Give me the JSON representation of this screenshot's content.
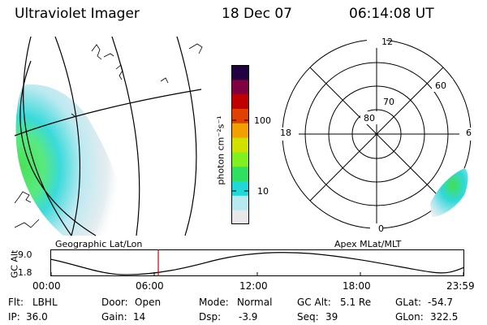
{
  "header": {
    "instrument": "Ultraviolet Imager",
    "date": "18 Dec 07",
    "time": "06:14:08 UT"
  },
  "geographic_panel": {
    "label": "Geographic Lat/Lon"
  },
  "colorbar": {
    "unit_label": "photon cm⁻²s⁻¹",
    "tick_labels": [
      "100",
      "10"
    ],
    "scale": "log",
    "colors": [
      "#e8e8e8",
      "#b8e8f0",
      "#20d8d8",
      "#30e060",
      "#80f020",
      "#d0e000",
      "#f0a000",
      "#e04000",
      "#c00000",
      "#800040",
      "#200040"
    ]
  },
  "polar_panel": {
    "label": "Apex MLat/MLT",
    "mlt_labels": {
      "top": "12",
      "left": "18",
      "right": "6",
      "bottom": "0"
    },
    "lat_labels": [
      "80",
      "70",
      "60"
    ]
  },
  "timeline": {
    "axis_label": "GC Alt",
    "y_labels": [
      "9.0",
      "1.8"
    ],
    "x_labels": [
      "00:00",
      "06:00",
      "12:00",
      "18:00",
      "23:59"
    ],
    "current_time": "06:14",
    "marker_color": "#d00000"
  },
  "status": {
    "filter_label": "Flt:",
    "filter": "LBHL",
    "door_label": "Door:",
    "door": "Open",
    "mode_label": "Mode:",
    "mode": "Normal",
    "gc_alt_label": "GC Alt:",
    "gc_alt": "5.1 Re",
    "glat_label": "GLat:",
    "glat": "-54.7",
    "ip_label": "IP:",
    "ip": "36.0",
    "gain_label": "Gain:",
    "gain": "14",
    "dsp_label": "Dsp:",
    "dsp": "-3.9",
    "seq_label": "Seq:",
    "seq": "39",
    "glon_label": "GLon:",
    "glon": "322.5"
  }
}
